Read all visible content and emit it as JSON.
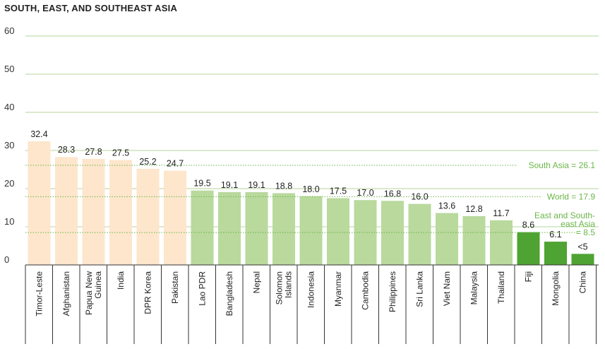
{
  "chart_data": {
    "type": "bar",
    "title": "SOUTH, EAST, AND SOUTHEAST ASIA",
    "ylim": [
      0,
      60
    ],
    "yticks": [
      0,
      10,
      20,
      30,
      40,
      50,
      60
    ],
    "grid": true,
    "categories": [
      "Timor-Leste",
      "Afghanistan",
      "Papua New Guinea",
      "India",
      "DPR Korea",
      "Pakistan",
      "Lao PDR",
      "Bangladesh",
      "Nepal",
      "Solomon Islands",
      "Indonesia",
      "Myanmar",
      "Cambodia",
      "Philippines",
      "Sri Lanka",
      "Viet Nam",
      "Malaysia",
      "Thailand",
      "Fiji",
      "Mongolia",
      "China"
    ],
    "values": [
      32.4,
      28.3,
      27.8,
      27.5,
      25.2,
      24.7,
      19.5,
      19.1,
      19.1,
      18.8,
      18.0,
      17.5,
      17.0,
      16.8,
      16.0,
      13.6,
      12.8,
      11.7,
      8.6,
      6.1,
      2.9
    ],
    "value_labels": [
      "32.4",
      "28.3",
      "27.8",
      "27.5",
      "25.2",
      "24.7",
      "19.5",
      "19.1",
      "19.1",
      "18.8",
      "18.0",
      "17.5",
      "17.0",
      "16.8",
      "16.0",
      "13.6",
      "12.8",
      "11.7",
      "8.6",
      "6.1",
      "<5"
    ],
    "bar_colors": [
      "#fde6cc",
      "#fde6cc",
      "#fde6cc",
      "#fde6cc",
      "#fde6cc",
      "#fde6cc",
      "#b9d99d",
      "#b9d99d",
      "#b9d99d",
      "#b9d99d",
      "#b9d99d",
      "#b9d99d",
      "#b9d99d",
      "#b9d99d",
      "#b9d99d",
      "#b9d99d",
      "#b9d99d",
      "#b9d99d",
      "#4ea333",
      "#4ea333",
      "#4ea333"
    ],
    "reference_lines": [
      {
        "label_lines": [
          "South Asia = 26.1"
        ],
        "value": 26.1
      },
      {
        "label_lines": [
          "World = 17.9"
        ],
        "value": 17.9
      },
      {
        "label_lines": [
          "East and South-",
          "east Asia",
          "= 8.5"
        ],
        "value": 8.5
      }
    ],
    "colors": {
      "grid": "#b5d69a",
      "reference": "#6bb648",
      "axis": "#333333"
    }
  }
}
